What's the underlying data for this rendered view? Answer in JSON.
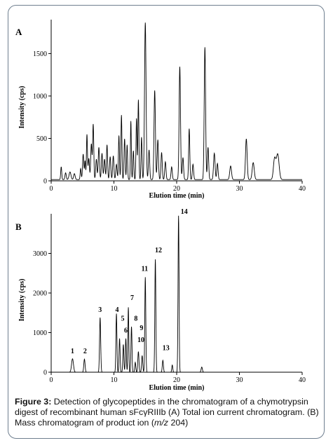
{
  "figure": {
    "caption": {
      "label": "Figure 3:",
      "part1": " Detection of glycopeptides in the chromatogram of a chymotrypsin digest of recombinant human sFcγRIIIb (A) Total ion current chromatogram. (B) Mass chromatogram of product ion (",
      "mz_italic": "m/z",
      "part2": " 204)"
    }
  },
  "chart_data": [
    {
      "type": "line",
      "panel_label": "A",
      "xlabel": "Elution time (min)",
      "ylabel": "Intensity (cps)",
      "xlim": [
        0,
        40
      ],
      "ylim": [
        0,
        1900
      ],
      "xticks": [
        0,
        10,
        20,
        30,
        40
      ],
      "yticks": [
        0,
        500,
        1000,
        1500
      ],
      "grid": false,
      "color": "#000000",
      "baseline": 15,
      "peaks": [
        {
          "t": 1.6,
          "h": 150,
          "w": 0.08
        },
        {
          "t": 2.3,
          "h": 80,
          "w": 0.1
        },
        {
          "t": 3.0,
          "h": 90,
          "w": 0.15
        },
        {
          "t": 3.7,
          "h": 70,
          "w": 0.12
        },
        {
          "t": 4.7,
          "h": 130,
          "w": 0.08
        },
        {
          "t": 5.1,
          "h": 300,
          "w": 0.1
        },
        {
          "t": 5.4,
          "h": 220,
          "w": 0.08
        },
        {
          "t": 5.7,
          "h": 530,
          "w": 0.08
        },
        {
          "t": 6.0,
          "h": 250,
          "w": 0.1
        },
        {
          "t": 6.4,
          "h": 420,
          "w": 0.1
        },
        {
          "t": 6.7,
          "h": 650,
          "w": 0.09
        },
        {
          "t": 7.2,
          "h": 240,
          "w": 0.1
        },
        {
          "t": 7.6,
          "h": 380,
          "w": 0.1
        },
        {
          "t": 8.1,
          "h": 310,
          "w": 0.1
        },
        {
          "t": 8.5,
          "h": 240,
          "w": 0.1
        },
        {
          "t": 8.9,
          "h": 410,
          "w": 0.09
        },
        {
          "t": 9.4,
          "h": 270,
          "w": 0.1
        },
        {
          "t": 9.9,
          "h": 280,
          "w": 0.1
        },
        {
          "t": 10.4,
          "h": 180,
          "w": 0.1
        },
        {
          "t": 10.8,
          "h": 520,
          "w": 0.08
        },
        {
          "t": 11.2,
          "h": 760,
          "w": 0.08
        },
        {
          "t": 11.7,
          "h": 480,
          "w": 0.09
        },
        {
          "t": 12.1,
          "h": 410,
          "w": 0.08
        },
        {
          "t": 12.7,
          "h": 690,
          "w": 0.07
        },
        {
          "t": 13.1,
          "h": 340,
          "w": 0.08
        },
        {
          "t": 13.6,
          "h": 720,
          "w": 0.08
        },
        {
          "t": 13.9,
          "h": 940,
          "w": 0.08
        },
        {
          "t": 14.4,
          "h": 500,
          "w": 0.08
        },
        {
          "t": 15.0,
          "h": 1850,
          "w": 0.12
        },
        {
          "t": 15.6,
          "h": 350,
          "w": 0.1
        },
        {
          "t": 16.5,
          "h": 1050,
          "w": 0.11
        },
        {
          "t": 17.0,
          "h": 470,
          "w": 0.1
        },
        {
          "t": 17.6,
          "h": 320,
          "w": 0.1
        },
        {
          "t": 18.2,
          "h": 210,
          "w": 0.1
        },
        {
          "t": 19.2,
          "h": 150,
          "w": 0.1
        },
        {
          "t": 20.5,
          "h": 1330,
          "w": 0.11
        },
        {
          "t": 21.0,
          "h": 260,
          "w": 0.1
        },
        {
          "t": 22.0,
          "h": 600,
          "w": 0.09
        },
        {
          "t": 22.6,
          "h": 180,
          "w": 0.1
        },
        {
          "t": 24.5,
          "h": 1560,
          "w": 0.11
        },
        {
          "t": 25.0,
          "h": 380,
          "w": 0.1
        },
        {
          "t": 26.0,
          "h": 310,
          "w": 0.12
        },
        {
          "t": 26.5,
          "h": 190,
          "w": 0.1
        },
        {
          "t": 28.6,
          "h": 160,
          "w": 0.14
        },
        {
          "t": 31.1,
          "h": 480,
          "w": 0.13
        },
        {
          "t": 32.2,
          "h": 200,
          "w": 0.16
        },
        {
          "t": 35.6,
          "h": 240,
          "w": 0.18
        },
        {
          "t": 36.1,
          "h": 300,
          "w": 0.22
        }
      ]
    },
    {
      "type": "line",
      "panel_label": "B",
      "xlabel": "Elution time (min)",
      "ylabel": "Intensity (cps)",
      "xlim": [
        0,
        40
      ],
      "ylim": [
        0,
        4000
      ],
      "xticks": [
        0,
        10,
        20,
        30,
        40
      ],
      "yticks": [
        0,
        1000,
        2000,
        3000
      ],
      "grid": false,
      "color": "#000000",
      "baseline": 0,
      "peaks": [
        {
          "t": 3.4,
          "h": 340,
          "w": 0.15
        },
        {
          "t": 5.3,
          "h": 330,
          "w": 0.1
        },
        {
          "t": 7.8,
          "h": 1380,
          "w": 0.09
        },
        {
          "t": 10.4,
          "h": 1480,
          "w": 0.08
        },
        {
          "t": 10.9,
          "h": 850,
          "w": 0.08
        },
        {
          "t": 11.5,
          "h": 700,
          "w": 0.08
        },
        {
          "t": 11.9,
          "h": 850,
          "w": 0.08
        },
        {
          "t": 12.3,
          "h": 1640,
          "w": 0.07
        },
        {
          "t": 12.8,
          "h": 1150,
          "w": 0.08
        },
        {
          "t": 13.4,
          "h": 250,
          "w": 0.08
        },
        {
          "t": 13.9,
          "h": 520,
          "w": 0.09
        },
        {
          "t": 14.5,
          "h": 420,
          "w": 0.09
        },
        {
          "t": 15.0,
          "h": 2400,
          "w": 0.08
        },
        {
          "t": 16.6,
          "h": 2850,
          "w": 0.08
        },
        {
          "t": 17.8,
          "h": 300,
          "w": 0.09
        },
        {
          "t": 19.3,
          "h": 180,
          "w": 0.08
        },
        {
          "t": 20.3,
          "h": 3950,
          "w": 0.08
        },
        {
          "t": 24.0,
          "h": 130,
          "w": 0.1
        }
      ],
      "peak_labels": [
        {
          "label": "1",
          "t": 3.4,
          "y": 480
        },
        {
          "label": "2",
          "t": 5.4,
          "y": 480
        },
        {
          "label": "3",
          "t": 7.8,
          "y": 1520
        },
        {
          "label": "4",
          "t": 10.5,
          "y": 1520
        },
        {
          "label": "5",
          "t": 11.4,
          "y": 1300
        },
        {
          "label": "6",
          "t": 11.9,
          "y": 1000
        },
        {
          "label": "7",
          "t": 12.9,
          "y": 1820
        },
        {
          "label": "8",
          "t": 13.5,
          "y": 1300
        },
        {
          "label": "9",
          "t": 14.4,
          "y": 1060
        },
        {
          "label": "10",
          "t": 14.3,
          "y": 760
        },
        {
          "label": "11",
          "t": 14.9,
          "y": 2560
        },
        {
          "label": "12",
          "t": 17.1,
          "y": 3030
        },
        {
          "label": "13",
          "t": 18.3,
          "y": 560
        },
        {
          "label": "14",
          "t": 21.2,
          "y": 4000
        }
      ]
    }
  ]
}
